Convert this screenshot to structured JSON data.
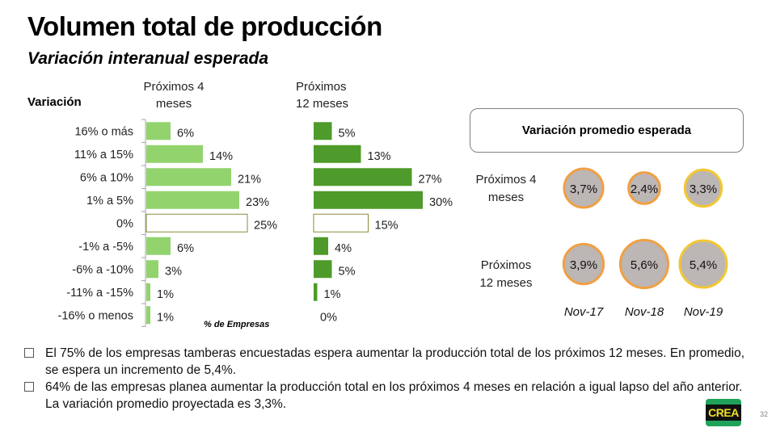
{
  "header": {
    "title": "Volumen total de producción",
    "subtitle": "Variación interanual esperada"
  },
  "chart_data": [
    {
      "type": "bar",
      "orientation": "horizontal",
      "title": "Próximos 4 meses",
      "ylabel": "Variación",
      "xlabel": "% de Empresas",
      "categories": [
        "16% o más",
        "11% a 15%",
        "6% a 10%",
        "1% a 5%",
        "0%",
        "-1% a -5%",
        "-6% a -10%",
        "-11% a -15%",
        "-16% o menos"
      ],
      "values": [
        6,
        14,
        21,
        23,
        25,
        6,
        3,
        1,
        1
      ],
      "labels": [
        "6%",
        "14%",
        "21%",
        "23%",
        "25%",
        "6%",
        "3%",
        "1%",
        "1%"
      ],
      "highlight_category": "0%",
      "color": "#92d36e",
      "highlight_border": "#8b8b3a"
    },
    {
      "type": "bar",
      "orientation": "horizontal",
      "title": "Próximos 12 meses",
      "categories": [
        "16% o más",
        "11% a 15%",
        "6% a 10%",
        "1% a 5%",
        "0%",
        "-1% a -5%",
        "-6% a -10%",
        "-11% a -15%",
        "-16% o menos"
      ],
      "values": [
        5,
        13,
        27,
        30,
        15,
        4,
        5,
        1,
        0
      ],
      "labels": [
        "5%",
        "13%",
        "27%",
        "30%",
        "15%",
        "4%",
        "5%",
        "1%",
        "0%"
      ],
      "highlight_category": "0%",
      "color": "#4e9a2a",
      "highlight_border": "#8b8b3a"
    },
    {
      "type": "bubble",
      "title": "Variación promedio esperada",
      "categories": [
        "Nov-17",
        "Nov-18",
        "Nov-19"
      ],
      "series": [
        {
          "name": "Próximos 4 meses",
          "values": [
            3.7,
            2.4,
            3.3
          ],
          "labels": [
            "3,7%",
            "2,4%",
            "3,3%"
          ]
        },
        {
          "name": "Próximos 12 meses",
          "values": [
            3.9,
            5.6,
            5.4
          ],
          "labels": [
            "3,9%",
            "5,6%",
            "5,4%"
          ]
        }
      ],
      "fill": "#bcb6b4",
      "border_colors": [
        "#f0a043",
        "#f0a043",
        "#f2c832"
      ]
    }
  ],
  "left_chart": {
    "variation_label": "Variación",
    "head_4": [
      "Próximos 4",
      "meses"
    ],
    "head_12": [
      "Próximos",
      "12 meses"
    ],
    "axis_label": "% de Empresas"
  },
  "right_panel": {
    "box_title": "Variación promedio esperada",
    "row1": [
      "Próximos 4",
      "meses"
    ],
    "row2": [
      "Próximos",
      "12 meses"
    ]
  },
  "bullets": [
    "El 75% de los empresas tamberas encuestadas espera aumentar la producción total de los próximos 12 meses. En promedio, se espera un incremento de 5,4%.",
    "64% de las empresas planea aumentar la producción total en los próximos 4 meses en relación a igual lapso del año anterior. La variación promedio proyectada es 3,3%."
  ],
  "footer": {
    "logo_text": "CREA",
    "page_number": "32"
  }
}
